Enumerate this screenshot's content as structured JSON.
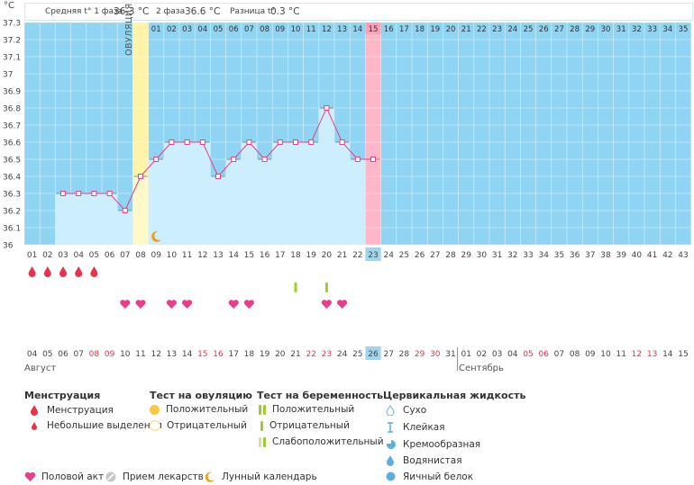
{
  "header": {
    "unit": "°C",
    "avg1_label": "Средняя t° 1 фаза",
    "avg1_value": "36.3 °C",
    "avg2_label": "2 фаза",
    "avg2_value": "36.6 °C",
    "diff_label": "Разница t°",
    "diff_value": "0.3 °C"
  },
  "ovulation_label": "ОВУЛЯЦИЯ",
  "chart_data": {
    "type": "line",
    "ylabel": "°C",
    "ylim": [
      36,
      37.3
    ],
    "y_ticks": [
      "37.3",
      "37.2",
      "37.1",
      "37",
      "36.9",
      "36.8",
      "36.7",
      "36.6",
      "36.5",
      "36.4",
      "36.3",
      "36.2",
      "36.1",
      "36"
    ],
    "cycle_days": [
      "01",
      "02",
      "03",
      "04",
      "05",
      "06",
      "07",
      "08",
      "09",
      "10",
      "11",
      "12",
      "13",
      "14",
      "15",
      "16",
      "17",
      "18",
      "19",
      "20",
      "21",
      "22",
      "23",
      "24",
      "25",
      "26",
      "27",
      "28",
      "29",
      "30",
      "31",
      "32",
      "33",
      "34",
      "35",
      "36",
      "37",
      "38",
      "39",
      "40",
      "41",
      "42",
      "43"
    ],
    "phase2_days": [
      "01",
      "02",
      "03",
      "04",
      "05",
      "06",
      "07",
      "08",
      "09",
      "10",
      "11",
      "12",
      "13",
      "14",
      "15",
      "16",
      "17",
      "18",
      "19",
      "20",
      "21",
      "22",
      "23",
      "24",
      "25",
      "26",
      "27",
      "28",
      "29",
      "30",
      "31",
      "32",
      "33",
      "34",
      "35"
    ],
    "temperatures": [
      null,
      null,
      36.3,
      36.3,
      36.3,
      36.3,
      36.2,
      36.4,
      36.5,
      36.6,
      36.6,
      36.6,
      36.4,
      36.5,
      36.6,
      36.5,
      36.6,
      36.6,
      36.6,
      36.8,
      36.6,
      36.5,
      36.5
    ],
    "ovulation_day": 8,
    "today_day": 23,
    "phase2_highlight": "15",
    "dates": [
      "04",
      "05",
      "06",
      "07",
      "08",
      "09",
      "10",
      "11",
      "12",
      "13",
      "14",
      "15",
      "16",
      "17",
      "18",
      "19",
      "20",
      "21",
      "22",
      "23",
      "24",
      "25",
      "26",
      "27",
      "28",
      "29",
      "30",
      "31",
      "01",
      "02",
      "03",
      "04",
      "05",
      "06",
      "07",
      "08",
      "09",
      "10",
      "11",
      "12",
      "13",
      "14",
      "15"
    ],
    "weekend_dates_idx": [
      4,
      5,
      11,
      12,
      18,
      19,
      25,
      26,
      32,
      33,
      39,
      40
    ],
    "month1": "Август",
    "month2": "Сентябрь",
    "menstruation_days": [
      1,
      2,
      3,
      4,
      5
    ],
    "intercourse_days": [
      7,
      8,
      10,
      11,
      14,
      15,
      20,
      21
    ],
    "pregnancy_test_pos_days": [
      18,
      20
    ],
    "moon_day": 9
  },
  "legend": {
    "menstruation": {
      "title": "Менструация",
      "items": [
        "Менструация",
        "Небольшие выделения"
      ]
    },
    "ovulation_test": {
      "title": "Тест на овуляцию",
      "items": [
        "Положительный",
        "Отрицательный"
      ]
    },
    "pregnancy_test": {
      "title": "Тест на беременность",
      "items": [
        "Положительный",
        "Отрицательный",
        "Слабоположительный"
      ]
    },
    "cervical": {
      "title": "Цервикальная жидкость",
      "items": [
        "Сухо",
        "Клейкая",
        "Кремообразная",
        "Водянистая",
        "Яичный белок"
      ]
    },
    "other": [
      "Половой акт",
      "Прием лекарств",
      "Лунный календарь"
    ]
  },
  "colors": {
    "grid_bg": "#8fd4f2",
    "bar_fill": "#cdeefc",
    "ovulation": "#fff3a8",
    "today_col": "#ffb6c8",
    "line": "#e8408a",
    "heart": "#e83e8c",
    "drop": "#e8334a",
    "weekend": "#e8334a"
  }
}
